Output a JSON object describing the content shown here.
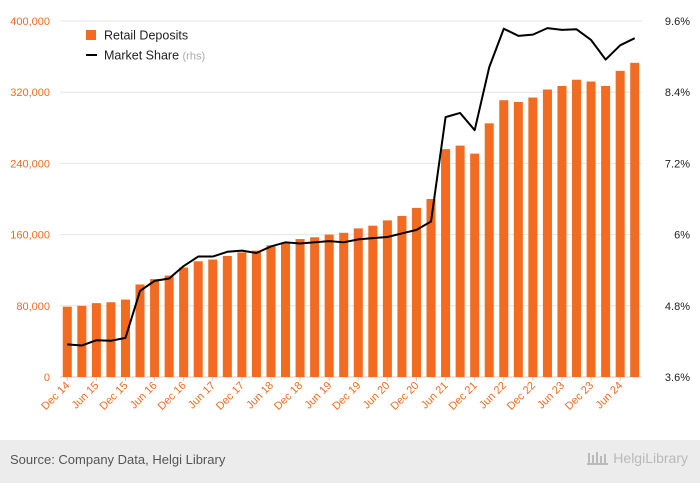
{
  "chart_data": {
    "type": "bar+line",
    "categories": [
      "Dec 14",
      "Mar 15",
      "Jun 15",
      "Sep 15",
      "Dec 15",
      "Mar 16",
      "Jun 16",
      "Sep 16",
      "Dec 16",
      "Mar 17",
      "Jun 17",
      "Sep 17",
      "Dec 17",
      "Mar 18",
      "Jun 18",
      "Sep 18",
      "Dec 18",
      "Mar 19",
      "Jun 19",
      "Sep 19",
      "Dec 19",
      "Mar 20",
      "Jun 20",
      "Sep 20",
      "Dec 20",
      "Mar 21",
      "Jun 21",
      "Sep 21",
      "Dec 21",
      "Mar 22",
      "Jun 22",
      "Sep 22",
      "Dec 22",
      "Mar 23",
      "Jun 23",
      "Sep 23",
      "Dec 23",
      "Mar 24",
      "Jun 24",
      "Sep 24"
    ],
    "x_tick_labels": [
      "Dec 14",
      "Jun 15",
      "Dec 15",
      "Jun 16",
      "Dec 16",
      "Jun 17",
      "Dec 17",
      "Jun 18",
      "Dec 18",
      "Jun 19",
      "Dec 19",
      "Jun 20",
      "Dec 20",
      "Jun 21",
      "Dec 21",
      "Jun 22",
      "Dec 22",
      "Jun 23",
      "Dec 23",
      "Jun 24"
    ],
    "series": [
      {
        "name": "Retail Deposits",
        "type": "bar",
        "axis": "left",
        "color": "#f26b21",
        "values": [
          79000,
          80000,
          83000,
          84000,
          87000,
          104000,
          110000,
          114000,
          123000,
          130000,
          132000,
          136000,
          140000,
          142000,
          148000,
          151000,
          155000,
          157000,
          160000,
          162000,
          167000,
          170000,
          176000,
          181000,
          190000,
          200000,
          256000,
          260000,
          251000,
          285000,
          311000,
          309000,
          314000,
          323000,
          327000,
          334000,
          332000,
          327000,
          344000,
          353000
        ]
      },
      {
        "name": "Market Share",
        "name_suffix": "(rhs)",
        "type": "line",
        "axis": "right",
        "color": "#000000",
        "values": [
          4.15,
          4.13,
          4.22,
          4.21,
          4.26,
          5.05,
          5.22,
          5.26,
          5.47,
          5.63,
          5.63,
          5.71,
          5.73,
          5.69,
          5.8,
          5.87,
          5.85,
          5.87,
          5.89,
          5.87,
          5.92,
          5.94,
          5.96,
          6.02,
          6.08,
          6.22,
          7.98,
          8.05,
          7.76,
          8.82,
          9.47,
          9.35,
          9.37,
          9.48,
          9.45,
          9.46,
          9.28,
          8.95,
          9.19,
          9.31
        ]
      }
    ],
    "yleft": {
      "min": 0,
      "max": 400000,
      "ticks": [
        "0",
        "80,000",
        "160,000",
        "240,000",
        "320,000",
        "400,000"
      ],
      "tick_values": [
        0,
        80000,
        160000,
        240000,
        320000,
        400000
      ]
    },
    "yright": {
      "min": 3.6,
      "max": 9.6,
      "ticks": [
        "3.6%",
        "4.8%",
        "6%",
        "7.2%",
        "8.4%",
        "9.6%"
      ],
      "tick_values": [
        3.6,
        4.8,
        6,
        7.2,
        8.4,
        9.6
      ]
    },
    "grid": true,
    "legend_position": "top-left",
    "axis_label_color": "#f26b21"
  },
  "footer": {
    "source": "Source: Company Data, Helgi Library",
    "logo_text": "HelgiLibrary",
    "logo_icon": "library-columns-icon"
  }
}
